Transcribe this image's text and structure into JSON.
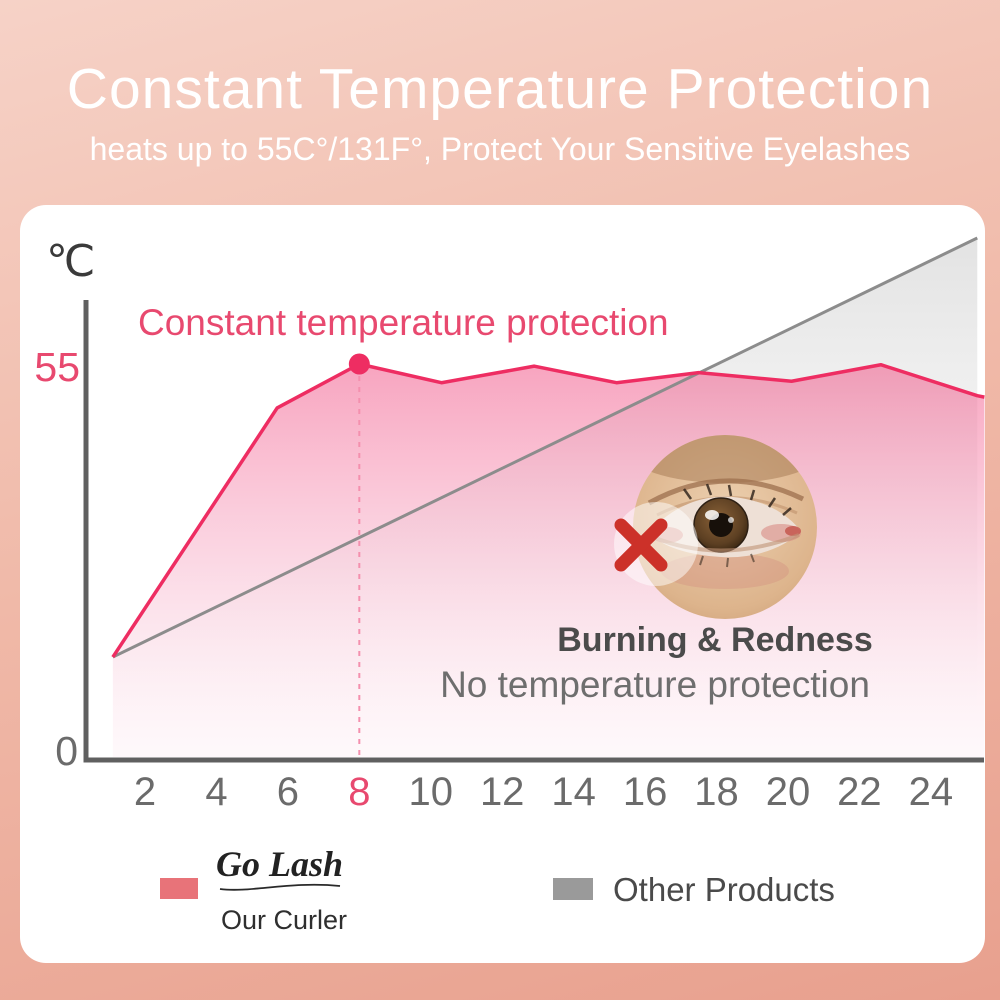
{
  "header": {
    "title": "Constant Temperature Protection",
    "subtitle": "heats up to 55C°/131F°, Protect Your Sensitive Eyelashes"
  },
  "chart_data": {
    "type": "line",
    "title_annotation": "Constant temperature protection",
    "y_axis": {
      "unit": "℃",
      "tick_labels": [
        "55",
        "0"
      ],
      "tick_values": [
        55,
        0
      ],
      "ylim": [
        0,
        80
      ]
    },
    "x_axis": {
      "tick_values": [
        2,
        4,
        6,
        8,
        10,
        12,
        14,
        16,
        18,
        20,
        22,
        24
      ],
      "highlighted_tick": 8
    },
    "series": [
      {
        "name": "Our Curler (constant temperature protection)",
        "color": "#ee2d62",
        "x": [
          1.1,
          5.7,
          8,
          10.3,
          12.9,
          15.2,
          17.5,
          20.1,
          22.6,
          25.3,
          25.5
        ],
        "y": [
          14.3,
          48.9,
          55,
          52.4,
          54.7,
          52.4,
          53.8,
          52.6,
          54.9,
          50.6,
          50.4
        ],
        "marker": {
          "x": 8,
          "y": 55
        }
      },
      {
        "name": "Other Products (no temperature protection)",
        "color": "#8c8c8c",
        "x": [
          1.1,
          25.3
        ],
        "y": [
          14.3,
          72.5
        ]
      }
    ],
    "grid": false,
    "legend_position": "bottom"
  },
  "callout": {
    "heading": "Burning & Redness",
    "subheading": "No temperature protection"
  },
  "legend": {
    "our": {
      "brand": "Go Lash",
      "label": "Our Curler",
      "color": "#e87379"
    },
    "other": {
      "label": "Other Products",
      "color": "#9a9a9a"
    }
  },
  "colors": {
    "pink_text": "#e8496f",
    "pink_line": "#ee2d62",
    "gray_line": "#8c8c8c",
    "axis": "#606060",
    "x_mark": "#cc3129",
    "background_top": "#f6d2c7",
    "background_bottom": "#e8a08e",
    "card": "#ffffff"
  }
}
